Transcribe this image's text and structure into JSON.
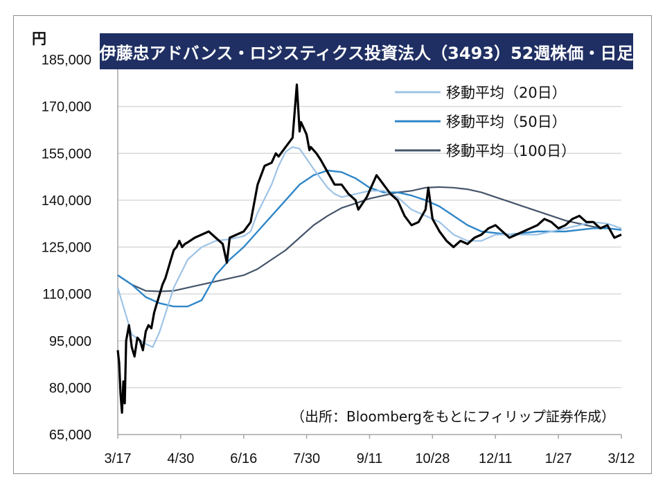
{
  "unit_label": "円",
  "title": "伊藤忠アドバンス・ロジスティクス投資法人（3493）52週株価・日足",
  "source_note": "（出所：Bloombergをもとにフィリップ証券作成）",
  "colors": {
    "price": "#000000",
    "ma20": "#9dc3e6",
    "ma50": "#2e86c8",
    "ma100": "#44546a",
    "grid": "#d9d9d9",
    "title_bg": "#1f2f63"
  },
  "chart_data": {
    "type": "line",
    "title": "伊藤忠アドバンス・ロジスティクス投資法人（3493）52週株価・日足",
    "ylabel": "円",
    "ylim": [
      65000,
      185000
    ],
    "yticks": [
      65000,
      80000,
      95000,
      110000,
      125000,
      140000,
      155000,
      170000,
      185000
    ],
    "ytick_labels": [
      "65,000",
      "80,000",
      "95,000",
      "110,000",
      "125,000",
      "140,000",
      "155,000",
      "170,000",
      "185,000"
    ],
    "x_range_days": [
      0,
      360
    ],
    "xtick_labels": [
      "3/17",
      "4/30",
      "6/16",
      "7/30",
      "9/11",
      "10/28",
      "12/11",
      "1/27",
      "3/12"
    ],
    "grid": true,
    "legend_position": "top-right",
    "series": [
      {
        "name": "price",
        "x": [
          0,
          1,
          2,
          3,
          4,
          5,
          6,
          8,
          10,
          12,
          14,
          16,
          18,
          20,
          22,
          24,
          26,
          28,
          30,
          32,
          34,
          36,
          38,
          40,
          42,
          44,
          46,
          48,
          50,
          55,
          60,
          65,
          70,
          75,
          78,
          80,
          85,
          90,
          95,
          100,
          105,
          110,
          113,
          115,
          120,
          125,
          128,
          130,
          131,
          133,
          135,
          137,
          138,
          140,
          142,
          145,
          150,
          155,
          160,
          165,
          170,
          172,
          175,
          178,
          180,
          185,
          190,
          195,
          200,
          205,
          210,
          215,
          220,
          222,
          225,
          230,
          235,
          240,
          245,
          250,
          255,
          260,
          265,
          270,
          275,
          280,
          285,
          290,
          295,
          300,
          305,
          310,
          315,
          320,
          325,
          330,
          335,
          340,
          345,
          350,
          355,
          360
        ],
        "values": [
          92000,
          88000,
          78000,
          72000,
          82000,
          75000,
          95000,
          100000,
          93000,
          90000,
          96000,
          95000,
          92000,
          98000,
          100000,
          99000,
          104000,
          107000,
          110000,
          113000,
          115000,
          118000,
          121000,
          124000,
          125000,
          127000,
          125000,
          126000,
          126500,
          128000,
          129000,
          130000,
          128000,
          126000,
          120000,
          128000,
          129000,
          130000,
          133000,
          145000,
          151000,
          152000,
          155000,
          154000,
          157000,
          160000,
          177000,
          162000,
          165000,
          163000,
          161000,
          156000,
          157000,
          156000,
          155000,
          153000,
          149000,
          145000,
          145000,
          142000,
          140000,
          137000,
          139000,
          141000,
          143000,
          148000,
          145000,
          142000,
          140000,
          135000,
          132000,
          133000,
          137000,
          144000,
          134000,
          130000,
          127000,
          125000,
          127000,
          126000,
          128000,
          129000,
          131000,
          132000,
          130000,
          128000,
          129000,
          130000,
          131000,
          132000,
          134000,
          133000,
          131000,
          132000,
          134000,
          135000,
          133000,
          133000,
          131000,
          132000,
          128000,
          129000
        ]
      },
      {
        "name": "移動平均（20日）",
        "x": [
          0,
          10,
          20,
          25,
          30,
          40,
          50,
          60,
          70,
          80,
          90,
          95,
          100,
          110,
          115,
          120,
          125,
          130,
          140,
          145,
          150,
          155,
          160,
          170,
          180,
          190,
          200,
          210,
          220,
          230,
          240,
          250,
          260,
          270,
          280,
          290,
          300,
          310,
          320,
          330,
          340,
          350,
          360
        ],
        "values": [
          112000,
          97000,
          94000,
          93000,
          98000,
          112000,
          121000,
          125000,
          127000,
          127500,
          128500,
          130000,
          136000,
          145000,
          151000,
          155500,
          157000,
          156500,
          150000,
          147000,
          144000,
          142000,
          141000,
          142000,
          143000,
          143000,
          141000,
          137000,
          135000,
          133000,
          129000,
          127000,
          127000,
          129000,
          129000,
          129000,
          129000,
          130000,
          131000,
          132000,
          133000,
          132500,
          131000
        ]
      },
      {
        "name": "移動平均（50日）",
        "x": [
          0,
          10,
          20,
          30,
          40,
          50,
          60,
          70,
          80,
          90,
          100,
          110,
          120,
          130,
          140,
          150,
          160,
          170,
          180,
          190,
          200,
          210,
          220,
          230,
          240,
          250,
          260,
          270,
          280,
          290,
          300,
          310,
          320,
          330,
          340,
          350,
          360
        ],
        "values": [
          116000,
          113000,
          109000,
          107000,
          106000,
          106000,
          108000,
          116000,
          121000,
          125000,
          130000,
          135000,
          140000,
          145000,
          148000,
          149500,
          149000,
          147000,
          144000,
          142500,
          142500,
          141500,
          140000,
          138000,
          135000,
          132000,
          130000,
          129500,
          129000,
          129500,
          130000,
          130000,
          130000,
          130500,
          131000,
          131000,
          130500
        ]
      },
      {
        "name": "移動平均（100日）",
        "x": [
          0,
          10,
          20,
          30,
          40,
          50,
          60,
          70,
          80,
          90,
          100,
          110,
          120,
          130,
          140,
          150,
          160,
          170,
          180,
          190,
          200,
          210,
          220,
          230,
          240,
          250,
          260,
          270,
          280,
          290,
          300,
          310,
          320,
          330,
          340,
          350,
          360
        ],
        "values": [
          116000,
          113000,
          111000,
          110800,
          111000,
          112000,
          113000,
          114000,
          115000,
          116000,
          118000,
          121000,
          124000,
          128000,
          132000,
          135000,
          137500,
          139000,
          140500,
          141500,
          142500,
          143000,
          144000,
          144200,
          144000,
          143500,
          142500,
          141000,
          139500,
          138000,
          136500,
          135000,
          133500,
          132500,
          131500,
          131000,
          130500
        ]
      }
    ]
  }
}
